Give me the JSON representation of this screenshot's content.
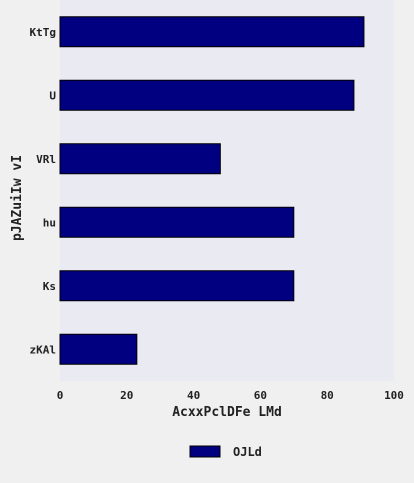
{
  "chart_data": {
    "type": "bar",
    "orientation": "horizontal",
    "categories": [
      "KtTg",
      "U",
      "VRl",
      "hu",
      "Ks",
      "zKAl"
    ],
    "series": [
      {
        "name": "OJLd",
        "values": [
          91,
          88,
          48,
          70,
          70,
          23
        ],
        "color": "#000080"
      }
    ],
    "xlabel": "AcxxPclDFe LMd",
    "ylabel": "pJAZuiIw vI",
    "xlim": [
      0,
      100
    ],
    "xticks": [
      "0",
      "20",
      "40",
      "60",
      "80",
      "100"
    ],
    "grid": false,
    "legend_position": "bottom-center",
    "colors": {
      "plot_background": "#eaeaf2",
      "page_background": "#f0f0f0",
      "bar_edge": "#000000"
    }
  }
}
